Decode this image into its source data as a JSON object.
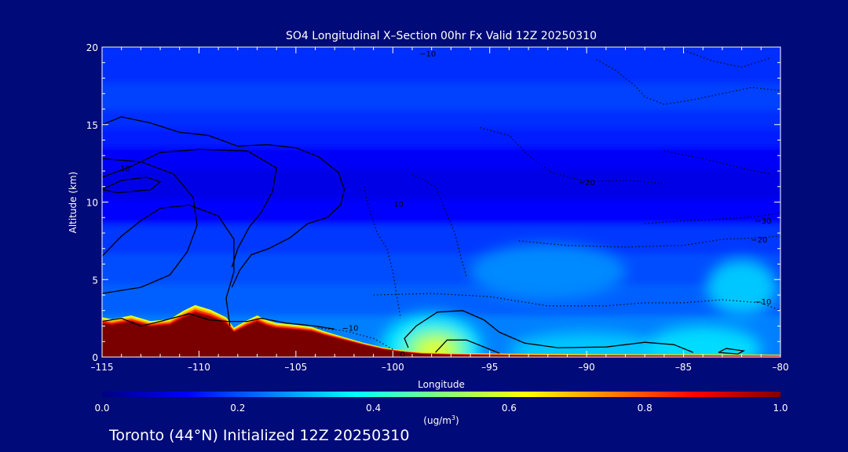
{
  "chart_data": {
    "type": "heatmap",
    "title": "SO4 Longitudinal X–Section 00hr  Fx Valid 12Z 20250310",
    "subtitle": "Toronto (44°N) Initialized 12Z 20250310",
    "xlabel": "Longitude",
    "ylabel": "Altitude (km)",
    "xlim": [
      -115,
      -80
    ],
    "ylim": [
      0,
      20
    ],
    "x_ticks": [
      -115,
      -110,
      -105,
      -100,
      -95,
      -90,
      -85,
      -80
    ],
    "x_tick_labels": [
      "–115",
      "–110",
      "–105",
      "–100",
      "–95",
      "–90",
      "–85",
      "–80"
    ],
    "y_ticks": [
      0,
      5,
      10,
      15,
      20
    ],
    "y_tick_labels": [
      "0",
      "5",
      "10",
      "15",
      "20"
    ],
    "colorbar": {
      "min": 0.0,
      "max": 1.0,
      "ticks": [
        0.0,
        0.2,
        0.4,
        0.6,
        0.8,
        1.0
      ],
      "tick_labels": [
        "0.0",
        "0.2",
        "0.4",
        "0.6",
        "0.8",
        "1.0"
      ],
      "unit_prefix": "(ug/m",
      "unit_exp": "3",
      "unit_suffix": ")",
      "colors": [
        "#000080",
        "#0000ff",
        "#0080ff",
        "#00ffff",
        "#80ff80",
        "#ffff00",
        "#ff8000",
        "#ff0000",
        "#800000"
      ]
    },
    "bands": [
      {
        "y0": 17.5,
        "y1": 20,
        "value": 0.17
      },
      {
        "y0": 15.8,
        "y1": 17.5,
        "value": 0.19
      },
      {
        "y0": 14.6,
        "y1": 15.8,
        "value": 0.17
      },
      {
        "y0": 13.4,
        "y1": 14.6,
        "value": 0.15
      },
      {
        "y0": 12.0,
        "y1": 13.4,
        "value": 0.12
      },
      {
        "y0": 10.0,
        "y1": 12.0,
        "value": 0.1
      },
      {
        "y0": 8.4,
        "y1": 10.0,
        "value": 0.13
      },
      {
        "y0": 6.5,
        "y1": 8.4,
        "value": 0.18
      },
      {
        "y0": 4.5,
        "y1": 6.5,
        "value": 0.2
      },
      {
        "y0": 2.5,
        "y1": 4.5,
        "value": 0.22
      },
      {
        "y0": 0,
        "y1": 2.5,
        "value": 0.25
      }
    ],
    "blobs": [
      {
        "x": -98,
        "y": 0.6,
        "rx": 2.6,
        "ry": 2.2,
        "value": 0.35
      },
      {
        "x": -97.8,
        "y": 0.5,
        "rx": 1.6,
        "ry": 1.3,
        "value": 0.5
      },
      {
        "x": -97.8,
        "y": 0.4,
        "rx": 0.9,
        "ry": 0.7,
        "value": 0.6
      },
      {
        "x": -90,
        "y": 0.4,
        "rx": 4,
        "ry": 1.2,
        "value": 0.32
      },
      {
        "x": -84,
        "y": 0.5,
        "rx": 3,
        "ry": 1.5,
        "value": 0.34
      },
      {
        "x": -82,
        "y": 4.5,
        "rx": 1.8,
        "ry": 1.8,
        "value": 0.32
      },
      {
        "x": -92,
        "y": 5.5,
        "rx": 4,
        "ry": 1.8,
        "value": 0.26
      }
    ],
    "terrain_bands": [
      {
        "offset": 0.55,
        "value": 0.6
      },
      {
        "offset": 0.42,
        "value": 0.7
      },
      {
        "offset": 0.3,
        "value": 0.82
      },
      {
        "offset": 0.18,
        "value": 0.92
      },
      {
        "offset": 0.09,
        "value": 1.0
      }
    ],
    "terrain": [
      [
        -115,
        2.1
      ],
      [
        -114.5,
        2.0
      ],
      [
        -113.5,
        2.2
      ],
      [
        -112.5,
        1.9
      ],
      [
        -111.5,
        2.0
      ],
      [
        -110.8,
        2.45
      ],
      [
        -110.2,
        2.75
      ],
      [
        -109.4,
        2.5
      ],
      [
        -108.6,
        2.1
      ],
      [
        -108.2,
        1.55
      ],
      [
        -107.6,
        1.9
      ],
      [
        -107.0,
        2.2
      ],
      [
        -106.5,
        1.95
      ],
      [
        -106.0,
        1.8
      ],
      [
        -105.0,
        1.7
      ],
      [
        -104.2,
        1.6
      ],
      [
        -103.5,
        1.35
      ],
      [
        -102.5,
        1.05
      ],
      [
        -101.5,
        0.75
      ],
      [
        -100.5,
        0.48
      ],
      [
        -99.5,
        0.3
      ],
      [
        -98.5,
        0.18
      ],
      [
        -97,
        0.12
      ],
      [
        -94,
        0.08
      ],
      [
        -90,
        0.05
      ],
      [
        -85,
        0.04
      ],
      [
        -80,
        0.02
      ]
    ],
    "contour_lines": [
      {
        "style": "solid",
        "points": [
          [
            -115,
            6.5
          ],
          [
            -114,
            7.8
          ],
          [
            -113,
            8.8
          ],
          [
            -112,
            9.6
          ],
          [
            -110.5,
            9.8
          ],
          [
            -109,
            9.1
          ],
          [
            -108.2,
            7.6
          ],
          [
            -108.2,
            5.5
          ],
          [
            -108.6,
            3.8
          ],
          [
            -108.4,
            2.0
          ]
        ]
      },
      {
        "style": "solid",
        "points": [
          [
            -115,
            4.1
          ],
          [
            -113,
            4.5
          ],
          [
            -111.5,
            5.3
          ],
          [
            -110.6,
            6.8
          ],
          [
            -110.1,
            8.5
          ],
          [
            -110.3,
            10.3
          ],
          [
            -111.3,
            11.8
          ],
          [
            -113,
            12.6
          ],
          [
            -115,
            12.8
          ]
        ]
      },
      {
        "style": "solid",
        "points": [
          [
            -115,
            15.0
          ],
          [
            -114,
            15.5
          ],
          [
            -112.5,
            15.1
          ],
          [
            -111,
            14.5
          ],
          [
            -109.5,
            14.3
          ],
          [
            -108,
            13.6
          ],
          [
            -106.5,
            13.7
          ],
          [
            -105,
            13.5
          ],
          [
            -103.8,
            12.9
          ],
          [
            -102.8,
            11.9
          ],
          [
            -102.5,
            10.8
          ],
          [
            -102.7,
            9.8
          ],
          [
            -103.4,
            9.0
          ],
          [
            -104.4,
            8.6
          ],
          [
            -105.3,
            7.7
          ],
          [
            -106.4,
            7.0
          ],
          [
            -107.3,
            6.6
          ],
          [
            -107.9,
            5.6
          ],
          [
            -108.3,
            4.5
          ]
        ]
      },
      {
        "style": "solid",
        "points": [
          [
            -115,
            11.6
          ],
          [
            -113.5,
            12.3
          ],
          [
            -112,
            13.2
          ],
          [
            -110,
            13.4
          ],
          [
            -107.5,
            13.3
          ],
          [
            -106,
            12.2
          ],
          [
            -106.2,
            10.7
          ],
          [
            -106.8,
            9.3
          ],
          [
            -107.4,
            8.4
          ],
          [
            -108,
            7.0
          ],
          [
            -108.3,
            5.8
          ]
        ]
      },
      {
        "style": "solid",
        "points": [
          [
            -115,
            10.8
          ],
          [
            -114,
            11.4
          ],
          [
            -112.7,
            11.6
          ],
          [
            -112.0,
            11.3
          ],
          [
            -112.5,
            10.8
          ],
          [
            -114.2,
            10.6
          ],
          [
            -115,
            10.8
          ]
        ]
      },
      {
        "style": "solid",
        "points": [
          [
            -115,
            2.3
          ],
          [
            -114,
            2.5
          ],
          [
            -113,
            2.0
          ],
          [
            -112,
            2.3
          ],
          [
            -110.5,
            2.8
          ],
          [
            -109.5,
            2.4
          ],
          [
            -108.5,
            2.3
          ],
          [
            -107.5,
            2.3
          ],
          [
            -106.8,
            2.5
          ],
          [
            -105.5,
            2.2
          ],
          [
            -104,
            2.0
          ],
          [
            -103,
            1.8
          ]
        ]
      },
      {
        "style": "solid",
        "points": [
          [
            -99.2,
            0.6
          ],
          [
            -99.4,
            1.2
          ],
          [
            -98.8,
            2.0
          ],
          [
            -97.7,
            2.9
          ],
          [
            -96.4,
            3.0
          ],
          [
            -95.3,
            2.4
          ],
          [
            -94.5,
            1.6
          ],
          [
            -93.2,
            0.9
          ],
          [
            -91.5,
            0.6
          ],
          [
            -89,
            0.65
          ],
          [
            -87,
            0.95
          ],
          [
            -85.5,
            0.8
          ],
          [
            -84.5,
            0.3
          ]
        ]
      },
      {
        "style": "solid",
        "points": [
          [
            -97.8,
            0.3
          ],
          [
            -97.2,
            1.1
          ],
          [
            -96.2,
            1.1
          ],
          [
            -95.2,
            0.6
          ],
          [
            -94.5,
            0.25
          ]
        ]
      },
      {
        "style": "solid",
        "points": [
          [
            -83.2,
            0.3
          ],
          [
            -82.8,
            0.55
          ],
          [
            -81.9,
            0.4
          ],
          [
            -82.2,
            0.2
          ],
          [
            -83.2,
            0.3
          ]
        ]
      },
      {
        "style": "dotted",
        "points": [
          [
            -100,
            0.5
          ],
          [
            -101,
            1.2
          ],
          [
            -102.5,
            1.7
          ],
          [
            -104,
            1.9
          ]
        ]
      },
      {
        "style": "dotted",
        "points": [
          [
            -101.5,
            11.0
          ],
          [
            -101.2,
            9.5
          ],
          [
            -100.8,
            8.0
          ],
          [
            -100.3,
            7.0
          ],
          [
            -100.0,
            5.5
          ],
          [
            -99.8,
            4.0
          ],
          [
            -99.6,
            2.5
          ]
        ]
      },
      {
        "style": "dotted",
        "points": [
          [
            -99,
            11.8
          ],
          [
            -97.8,
            11.0
          ],
          [
            -97.3,
            9.5
          ],
          [
            -96.8,
            8.0
          ],
          [
            -96.5,
            6.5
          ],
          [
            -96.2,
            5.2
          ]
        ]
      },
      {
        "style": "dotted",
        "points": [
          [
            -95.5,
            14.8
          ],
          [
            -94.0,
            14.3
          ],
          [
            -93.0,
            13.0
          ],
          [
            -91.8,
            11.9
          ],
          [
            -90,
            11.3
          ],
          [
            -88,
            11.4
          ],
          [
            -86,
            11.2
          ]
        ]
      },
      {
        "style": "dotted",
        "points": [
          [
            -101,
            4.0
          ],
          [
            -98,
            4.1
          ],
          [
            -95,
            3.9
          ],
          [
            -92,
            3.3
          ],
          [
            -89,
            3.3
          ],
          [
            -87,
            3.5
          ],
          [
            -85,
            3.5
          ],
          [
            -83,
            3.7
          ],
          [
            -81,
            3.5
          ],
          [
            -80,
            3.0
          ]
        ]
      },
      {
        "style": "dotted",
        "points": [
          [
            -93.5,
            7.5
          ],
          [
            -91,
            7.2
          ],
          [
            -88,
            7.1
          ],
          [
            -85,
            7.2
          ],
          [
            -83,
            7.6
          ],
          [
            -81,
            7.7
          ],
          [
            -80,
            7.8
          ]
        ]
      },
      {
        "style": "dotted",
        "points": [
          [
            -87,
            8.6
          ],
          [
            -85,
            8.8
          ],
          [
            -83,
            8.9
          ],
          [
            -81,
            9.1
          ],
          [
            -80,
            9.3
          ]
        ]
      },
      {
        "style": "dotted",
        "points": [
          [
            -89.5,
            19.2
          ],
          [
            -88.5,
            18.5
          ],
          [
            -87.5,
            17.5
          ],
          [
            -87.0,
            16.8
          ],
          [
            -86,
            16.3
          ],
          [
            -84.5,
            16.6
          ],
          [
            -83,
            17.0
          ],
          [
            -81.5,
            17.4
          ],
          [
            -80,
            17.2
          ]
        ]
      },
      {
        "style": "dotted",
        "points": [
          [
            -85,
            19.8
          ],
          [
            -83.5,
            19.1
          ],
          [
            -82,
            18.7
          ],
          [
            -80.5,
            19.3
          ]
        ]
      },
      {
        "style": "dotted",
        "points": [
          [
            -86,
            13.3
          ],
          [
            -84,
            12.8
          ],
          [
            -82,
            12.2
          ],
          [
            -80.5,
            11.8
          ]
        ]
      }
    ],
    "contour_labels": [
      {
        "x": -113.8,
        "y": 12.2,
        "text": "10"
      },
      {
        "x": -102.2,
        "y": 1.9,
        "text": "−10"
      },
      {
        "x": -99.7,
        "y": 9.9,
        "text": "10"
      },
      {
        "x": -90.0,
        "y": 11.3,
        "text": "−20"
      },
      {
        "x": -80.9,
        "y": 8.8,
        "text": "−30"
      },
      {
        "x": -81.1,
        "y": 7.6,
        "text": "−20"
      },
      {
        "x": -80.9,
        "y": 3.6,
        "text": "−10"
      },
      {
        "x": -98.2,
        "y": 19.6,
        "text": "−10"
      },
      {
        "x": -99.5,
        "y": 0.2,
        "text": "0"
      }
    ]
  }
}
